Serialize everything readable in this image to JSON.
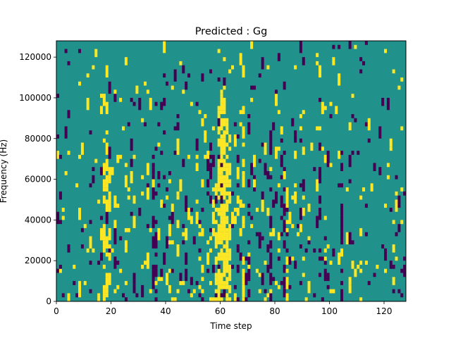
{
  "chart_data": {
    "type": "heatmap",
    "title": "Predicted : Gg",
    "xlabel": "Time step",
    "ylabel": "Frequency (Hz)",
    "xlim": [
      0,
      128
    ],
    "ylim": [
      0,
      128000
    ],
    "x_ticks": [
      0,
      20,
      40,
      60,
      80,
      100,
      120
    ],
    "y_ticks": [
      0,
      20000,
      40000,
      60000,
      80000,
      100000,
      120000
    ],
    "x_tick_labels": [
      "0",
      "20",
      "40",
      "60",
      "80",
      "100",
      "120"
    ],
    "y_tick_labels": [
      "0",
      "20000",
      "40000",
      "60000",
      "80000",
      "100000",
      "120000"
    ],
    "n_time_steps": 128,
    "n_freq_bins": 64,
    "colormap": "viridis",
    "colors": {
      "background_value": "#21918c",
      "high_value": "#fde725",
      "low_value": "#440154"
    },
    "grid": false
  }
}
